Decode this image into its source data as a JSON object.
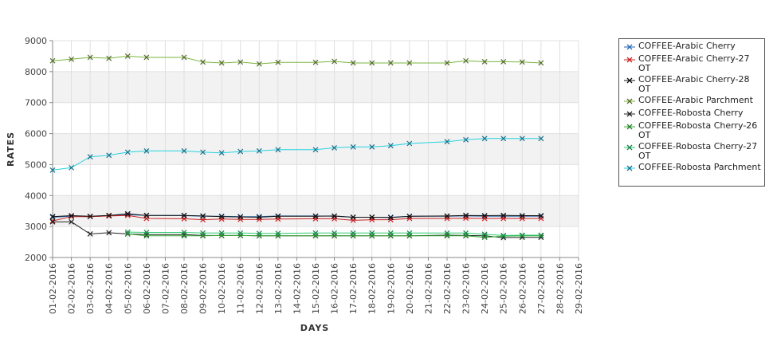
{
  "chart_data": {
    "type": "line",
    "title": "",
    "xlabel": "DAYS",
    "ylabel": "RATES",
    "ylim": [
      2000,
      9000
    ],
    "yticks": [
      2000,
      3000,
      4000,
      5000,
      6000,
      7000,
      8000,
      9000
    ],
    "grid": true,
    "legend_position": "right",
    "categories": [
      "01-02-2016",
      "02-02-2016",
      "03-02-2016",
      "04-02-2016",
      "05-02-2016",
      "06-02-2016",
      "07-02-2016",
      "08-02-2016",
      "09-02-2016",
      "10-02-2016",
      "11-02-2016",
      "12-02-2016",
      "13-02-2016",
      "14-02-2016",
      "15-02-2016",
      "16-02-2016",
      "17-02-2016",
      "18-02-2016",
      "19-02-2016",
      "20-02-2016",
      "21-02-2016",
      "22-02-2016",
      "23-02-2016",
      "24-02-2016",
      "25-02-2016",
      "26-02-2016",
      "27-02-2016",
      "28-02-2016",
      "29-02-2016"
    ],
    "series": [
      {
        "name": "COFFEE-Arabic Cherry",
        "color": "#2a6db5",
        "marker_color": "#2a6db5",
        "values": [
          3300,
          3330,
          3320,
          3350,
          3380,
          3360,
          null,
          3350,
          3330,
          3330,
          3320,
          3320,
          3340,
          null,
          3340,
          3330,
          3300,
          3300,
          3300,
          3330,
          null,
          3330,
          3340,
          3330,
          3330,
          3330,
          3330,
          null,
          null
        ]
      },
      {
        "name": "COFFEE-Arabic Cherry-27 OT",
        "color": "#cc2222",
        "marker_color": "#cc2222",
        "values": [
          3180,
          3320,
          3320,
          3340,
          3360,
          3260,
          null,
          3250,
          3220,
          3240,
          3230,
          3230,
          3240,
          null,
          3250,
          3250,
          3200,
          3220,
          3220,
          3260,
          null,
          3260,
          3270,
          3260,
          3260,
          3260,
          3260,
          null,
          null
        ]
      },
      {
        "name": "COFFEE-Arabic Cherry-28 OT",
        "color": "#111111",
        "marker_color": "#111111",
        "values": [
          3320,
          3350,
          3330,
          3360,
          3410,
          3360,
          null,
          3360,
          3340,
          3320,
          3310,
          3300,
          3330,
          null,
          3330,
          3340,
          3300,
          3300,
          3290,
          3330,
          null,
          3340,
          3360,
          3350,
          3360,
          3350,
          3350,
          null,
          null
        ]
      },
      {
        "name": "COFFEE-Arabic Parchment",
        "color": "#7ab53e",
        "marker_color": "#556b2f",
        "values": [
          8350,
          8400,
          8460,
          8430,
          8500,
          8460,
          null,
          8460,
          8310,
          8280,
          8310,
          8250,
          8300,
          null,
          8300,
          8330,
          8280,
          8280,
          8280,
          8280,
          null,
          8280,
          8350,
          8320,
          8320,
          8310,
          8280,
          null,
          null
        ]
      },
      {
        "name": "COFFEE-Robosta Cherry",
        "color": "#222222",
        "marker_color": "#222222",
        "values": [
          3150,
          3150,
          2760,
          2800,
          2760,
          2740,
          null,
          2740,
          2710,
          2710,
          2710,
          2700,
          2700,
          null,
          2700,
          2700,
          2700,
          2700,
          2700,
          2700,
          null,
          2720,
          2710,
          2700,
          2640,
          2650,
          2650,
          null,
          null
        ]
      },
      {
        "name": "COFFEE-Robosta Cherry-26 OT",
        "color": "#33aa33",
        "marker_color": "#2e7d32",
        "values": [
          null,
          null,
          null,
          null,
          2760,
          2700,
          null,
          2700,
          2700,
          2710,
          2710,
          2700,
          2700,
          null,
          2700,
          2700,
          2700,
          2700,
          2700,
          2700,
          null,
          2700,
          2700,
          2650,
          2690,
          2700,
          2700,
          null,
          null
        ]
      },
      {
        "name": "COFFEE-Robosta Cherry-27 OT",
        "color": "#2ecc71",
        "marker_color": "#1e8449",
        "values": [
          null,
          null,
          null,
          null,
          2820,
          2810,
          null,
          2810,
          2790,
          2790,
          2790,
          2780,
          2780,
          null,
          2790,
          2790,
          2790,
          2790,
          2790,
          2790,
          null,
          2790,
          2790,
          2750,
          2710,
          2720,
          2720,
          null,
          null
        ]
      },
      {
        "name": "COFFEE-Robosta Parchment",
        "color": "#27d3e0",
        "marker_color": "#1b6f8a",
        "values": [
          4820,
          4900,
          5250,
          5300,
          5400,
          5440,
          null,
          5440,
          5400,
          5380,
          5420,
          5440,
          5480,
          null,
          5480,
          5540,
          5570,
          5570,
          5610,
          5680,
          null,
          5740,
          5800,
          5840,
          5840,
          5840,
          5840,
          null,
          null
        ]
      }
    ]
  }
}
